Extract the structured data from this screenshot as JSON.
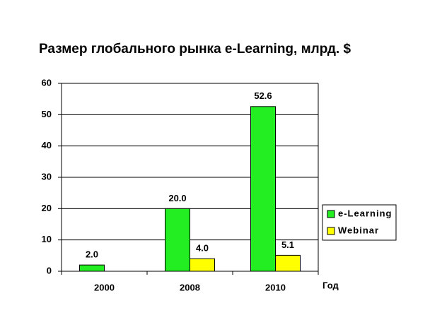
{
  "chart_data": {
    "type": "bar",
    "title": "Размер глобального рынка e-Learning, млрд. $",
    "x_label": "Год",
    "categories": [
      "2000",
      "2008",
      "2010"
    ],
    "series": [
      {
        "name": "e-Learning",
        "color": "#22ee22",
        "values": [
          2.0,
          20.0,
          52.6
        ],
        "value_labels": [
          "2.0",
          "20.0",
          "52.6"
        ]
      },
      {
        "name": "Webinar",
        "color": "#ffff00",
        "values": [
          null,
          4.0,
          5.1
        ],
        "value_labels": [
          null,
          "4.0",
          "5.1"
        ]
      }
    ],
    "ylim": [
      0,
      60
    ],
    "yticks": [
      0,
      10,
      20,
      30,
      40,
      50,
      60
    ],
    "grid": true
  }
}
